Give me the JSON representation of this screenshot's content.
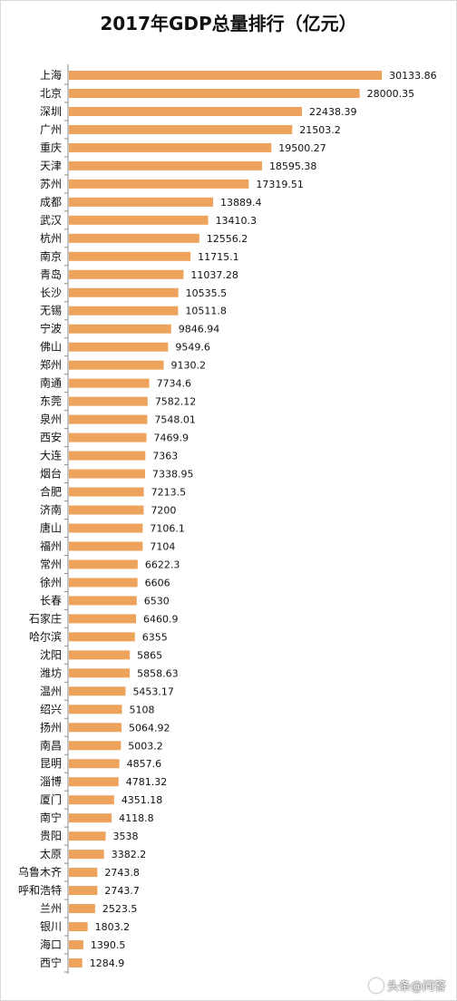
{
  "chart_data": {
    "type": "bar",
    "orientation": "horizontal",
    "title": "2017年GDP总量排行（亿元）",
    "bar_color": "#eda35b",
    "categories": [
      "上海",
      "北京",
      "深圳",
      "广州",
      "重庆",
      "天津",
      "苏州",
      "成都",
      "武汉",
      "杭州",
      "南京",
      "青岛",
      "长沙",
      "无锡",
      "宁波",
      "佛山",
      "郑州",
      "南通",
      "东莞",
      "泉州",
      "西安",
      "大连",
      "烟台",
      "合肥",
      "济南",
      "唐山",
      "福州",
      "常州",
      "徐州",
      "长春",
      "石家庄",
      "哈尔滨",
      "沈阳",
      "潍坊",
      "温州",
      "绍兴",
      "扬州",
      "南昌",
      "昆明",
      "淄博",
      "厦门",
      "南宁",
      "贵阳",
      "太原",
      "乌鲁木齐",
      "呼和浩特",
      "兰州",
      "银川",
      "海口",
      "西宁"
    ],
    "values": [
      30133.86,
      28000.35,
      22438.39,
      21503.2,
      19500.27,
      18595.38,
      17319.51,
      13889.4,
      13410.3,
      12556.2,
      11715.1,
      11037.28,
      10535.5,
      10511.8,
      9846.94,
      9549.6,
      9130.2,
      7734.6,
      7582.12,
      7548.01,
      7469.9,
      7363,
      7338.95,
      7213.5,
      7200,
      7106.1,
      7104,
      6622.3,
      6606,
      6530,
      6460.9,
      6355,
      5865,
      5858.63,
      5453.17,
      5108,
      5064.92,
      5003.2,
      4857.6,
      4781.32,
      4351.18,
      4118.8,
      3538,
      3382.2,
      2743.8,
      2743.7,
      2523.5,
      1803.2,
      1390.5,
      1284.9
    ],
    "value_labels": [
      "30133.86",
      "28000.35",
      "22438.39",
      "21503.2",
      "19500.27",
      "18595.38",
      "17319.51",
      "13889.4",
      "13410.3",
      "12556.2",
      "11715.1",
      "11037.28",
      "10535.5",
      "10511.8",
      "9846.94",
      "9549.6",
      "9130.2",
      "7734.6",
      "7582.12",
      "7548.01",
      "7469.9",
      "7363",
      "7338.95",
      "7213.5",
      "7200",
      "7106.1",
      "7104",
      "6622.3",
      "6606",
      "6530",
      "6460.9",
      "6355",
      "5865",
      "5858.63",
      "5453.17",
      "5108",
      "5064.92",
      "5003.2",
      "4857.6",
      "4781.32",
      "4351.18",
      "4118.8",
      "3538",
      "3382.2",
      "2743.8",
      "2743.7",
      "2523.5",
      "1803.2",
      "1390.5",
      "1284.9"
    ],
    "xlim": [
      0,
      31000
    ],
    "grid": false,
    "legend": "none"
  },
  "watermark": {
    "text": "头条@问答",
    "icon": "toutiao-logo-icon"
  }
}
